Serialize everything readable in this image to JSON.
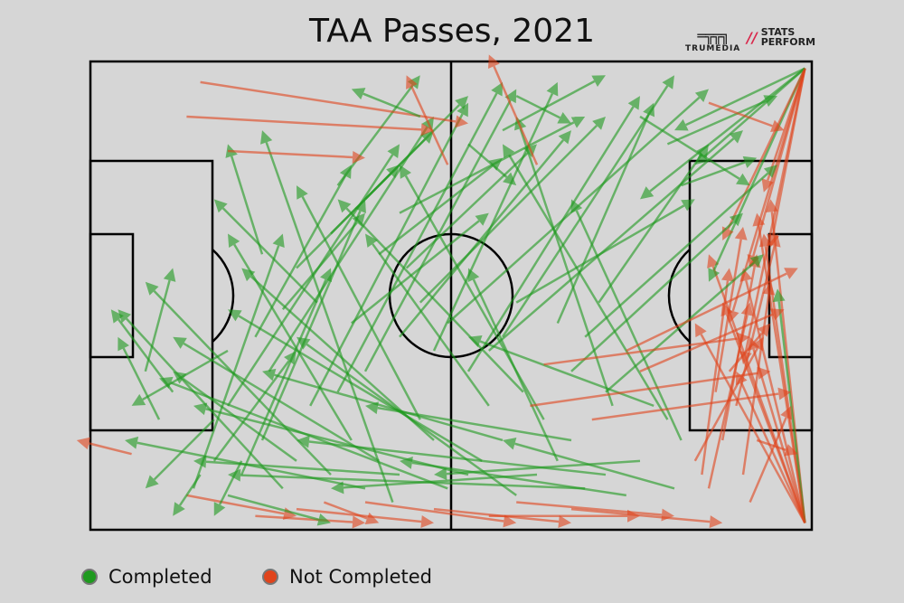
{
  "chart_data": {
    "type": "scatter",
    "subtype": "pass-map",
    "title": "TAA Passes, 2021",
    "pitch_units": {
      "length": 105,
      "width": 68
    },
    "legend": [
      {
        "label": "Completed",
        "color": "#1f9a1f"
      },
      {
        "label": "Not Completed",
        "color": "#e0441c"
      }
    ],
    "legend_placement": "bottom-left",
    "logos": [
      "TRUMEDIA",
      "STATS PERFORM"
    ],
    "passes_format": [
      "x_start",
      "y_start",
      "x_end",
      "y_end",
      "completed"
    ],
    "passes": [
      [
        104,
        67,
        95,
        30,
        0
      ],
      [
        104,
        67,
        98,
        25,
        0
      ],
      [
        104,
        67,
        92,
        35,
        0
      ],
      [
        104,
        67,
        96,
        40,
        0
      ],
      [
        104,
        67,
        90,
        28,
        0
      ],
      [
        104,
        67,
        99,
        20,
        0
      ],
      [
        104,
        67,
        94,
        45,
        0
      ],
      [
        104,
        67,
        100,
        33,
        1
      ],
      [
        104,
        67,
        88,
        38,
        0
      ],
      [
        104,
        67,
        97,
        22,
        0
      ],
      [
        104,
        1,
        96,
        30,
        0
      ],
      [
        104,
        1,
        93,
        38,
        0
      ],
      [
        104,
        1,
        99,
        27,
        0
      ],
      [
        104,
        1,
        90,
        32,
        1
      ],
      [
        104,
        1,
        85,
        10,
        1
      ],
      [
        104,
        1,
        95,
        44,
        0
      ],
      [
        104,
        1,
        88,
        15,
        1
      ],
      [
        104,
        1,
        98,
        19,
        0
      ],
      [
        104,
        1,
        80,
        20,
        1
      ],
      [
        104,
        1,
        92,
        26,
        0
      ],
      [
        95,
        60,
        99,
        32,
        0
      ],
      [
        92,
        55,
        97,
        28,
        0
      ],
      [
        90,
        62,
        96,
        35,
        0
      ],
      [
        94,
        50,
        100,
        25,
        0
      ],
      [
        88,
        58,
        98,
        40,
        0
      ],
      [
        96,
        64,
        102,
        50,
        0
      ],
      [
        93,
        45,
        99,
        38,
        0
      ],
      [
        97,
        55,
        103,
        57,
        0
      ],
      [
        91,
        48,
        95,
        24,
        0
      ],
      [
        89,
        60,
        93,
        30,
        0
      ],
      [
        85,
        62,
        60,
        55,
        1
      ],
      [
        80,
        58,
        50,
        60,
        1
      ],
      [
        82,
        50,
        55,
        40,
        1
      ],
      [
        78,
        63,
        45,
        58,
        1
      ],
      [
        86,
        55,
        70,
        20,
        1
      ],
      [
        75,
        60,
        30,
        55,
        1
      ],
      [
        70,
        55,
        40,
        50,
        1
      ],
      [
        72,
        62,
        20,
        60,
        1
      ],
      [
        84,
        52,
        60,
        12,
        1
      ],
      [
        76,
        50,
        62,
        8,
        1
      ],
      [
        65,
        60,
        35,
        62,
        1
      ],
      [
        60,
        55,
        25,
        45,
        1
      ],
      [
        68,
        58,
        55,
        30,
        1
      ],
      [
        62,
        63,
        30,
        40,
        1
      ],
      [
        58,
        50,
        40,
        25,
        1
      ],
      [
        55,
        60,
        15,
        50,
        1
      ],
      [
        66,
        52,
        45,
        15,
        1
      ],
      [
        63,
        48,
        36,
        20,
        1
      ],
      [
        57,
        58,
        20,
        36,
        1
      ],
      [
        52,
        62,
        10,
        46,
        1
      ],
      [
        50,
        55,
        22,
        30,
        1
      ],
      [
        45,
        60,
        15,
        58,
        1
      ],
      [
        48,
        52,
        30,
        18,
        1
      ],
      [
        42,
        58,
        12,
        40,
        1
      ],
      [
        40,
        62,
        5,
        55,
        1
      ],
      [
        38,
        55,
        20,
        25,
        1
      ],
      [
        35,
        60,
        8,
        32,
        1
      ],
      [
        44,
        64,
        25,
        10,
        1
      ],
      [
        30,
        58,
        12,
        45,
        1
      ],
      [
        28,
        62,
        4,
        36,
        1
      ],
      [
        25,
        55,
        40,
        20,
        1
      ],
      [
        22,
        60,
        35,
        30,
        1
      ],
      [
        20,
        50,
        45,
        12,
        1
      ],
      [
        18,
        58,
        30,
        42,
        1
      ],
      [
        15,
        62,
        28,
        25,
        1
      ],
      [
        26,
        45,
        50,
        8,
        1
      ],
      [
        32,
        50,
        55,
        6,
        1
      ],
      [
        36,
        48,
        60,
        3,
        1
      ],
      [
        24,
        40,
        38,
        15,
        1
      ],
      [
        20,
        42,
        6,
        50,
        1
      ],
      [
        40,
        45,
        62,
        4,
        1
      ],
      [
        45,
        40,
        70,
        10,
        1
      ],
      [
        50,
        42,
        68,
        3,
        1
      ],
      [
        55,
        45,
        80,
        5,
        1
      ],
      [
        60,
        40,
        85,
        2,
        1
      ],
      [
        48,
        35,
        75,
        8,
        1
      ],
      [
        52,
        38,
        90,
        4,
        1
      ],
      [
        58,
        42,
        95,
        10,
        1
      ],
      [
        62,
        35,
        88,
        20,
        1
      ],
      [
        46,
        30,
        65,
        12,
        1
      ],
      [
        70,
        45,
        95,
        22,
        1
      ],
      [
        72,
        40,
        100,
        15,
        1
      ],
      [
        75,
        48,
        98,
        28,
        1
      ],
      [
        68,
        38,
        82,
        6,
        1
      ],
      [
        74,
        35,
        90,
        12,
        1
      ],
      [
        78,
        42,
        103,
        30,
        0
      ],
      [
        80,
        45,
        101,
        36,
        0
      ],
      [
        66,
        44,
        96,
        40,
        0
      ],
      [
        64,
        50,
        99,
        45,
        0
      ],
      [
        73,
        52,
        102,
        48,
        0
      ],
      [
        30,
        30,
        45,
        15,
        1
      ],
      [
        35,
        25,
        50,
        10,
        1
      ],
      [
        40,
        20,
        55,
        5,
        1
      ],
      [
        25,
        28,
        20,
        12,
        1
      ],
      [
        33,
        35,
        18,
        20,
        1
      ],
      [
        38,
        38,
        58,
        22,
        1
      ],
      [
        28,
        36,
        40,
        22,
        1
      ],
      [
        42,
        28,
        60,
        14,
        1
      ],
      [
        45,
        22,
        72,
        8,
        1
      ],
      [
        36,
        18,
        48,
        2,
        1
      ],
      [
        16,
        3,
        55,
        9,
        0
      ],
      [
        14,
        8,
        50,
        10,
        0
      ],
      [
        20,
        13,
        40,
        14,
        0
      ],
      [
        6,
        57,
        -2,
        55,
        0
      ],
      [
        14,
        63,
        30,
        66,
        0
      ],
      [
        24,
        66,
        40,
        67,
        0
      ],
      [
        30,
        65,
        50,
        67,
        0
      ],
      [
        40,
        64,
        62,
        67,
        0
      ],
      [
        50,
        65,
        70,
        67,
        0
      ],
      [
        58,
        66,
        80,
        66,
        0
      ],
      [
        62,
        64,
        85,
        66,
        0
      ],
      [
        70,
        65,
        92,
        67,
        0
      ],
      [
        20,
        63,
        35,
        67,
        1
      ],
      [
        16,
        60,
        12,
        66,
        1
      ],
      [
        10,
        52,
        4,
        40,
        1
      ],
      [
        12,
        48,
        3,
        36,
        1
      ],
      [
        8,
        45,
        12,
        30,
        1
      ],
      [
        18,
        52,
        8,
        62,
        1
      ],
      [
        22,
        58,
        18,
        66,
        1
      ],
      [
        34,
        64,
        42,
        67,
        0
      ],
      [
        60,
        10,
        75,
        2,
        1
      ],
      [
        62,
        5,
        70,
        9,
        1
      ],
      [
        55,
        12,
        62,
        18,
        1
      ],
      [
        48,
        8,
        38,
        4,
        1
      ],
      [
        52,
        15,
        46,
        2,
        0
      ],
      [
        65,
        15,
        58,
        -1,
        0
      ],
      [
        80,
        8,
        96,
        18,
        1
      ],
      [
        84,
        12,
        100,
        5,
        1
      ],
      [
        86,
        18,
        97,
        14,
        1
      ],
      [
        90,
        6,
        101,
        10,
        0
      ]
    ]
  }
}
